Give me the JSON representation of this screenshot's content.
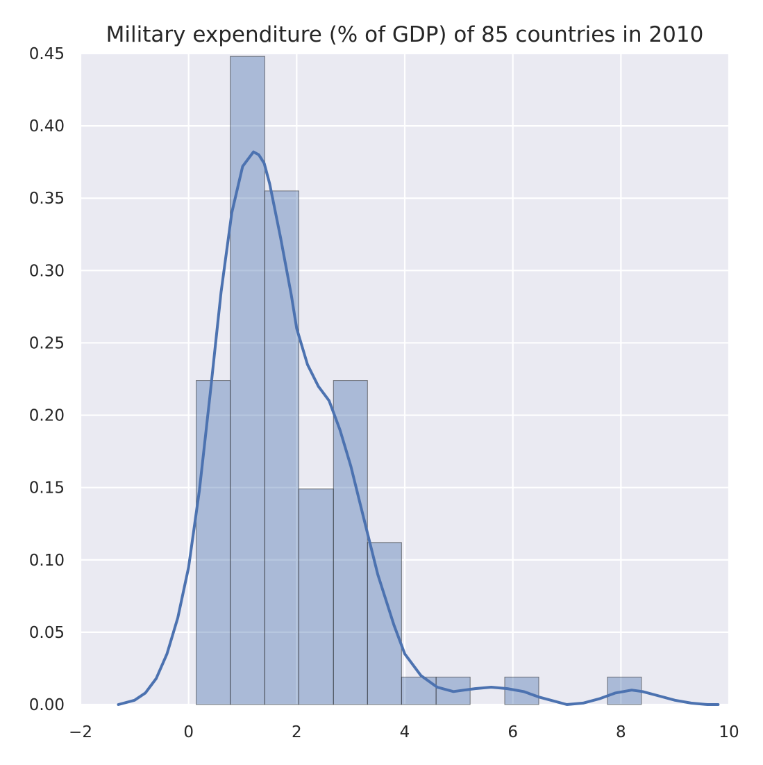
{
  "chart_data": {
    "type": "bar",
    "title": "Military expenditure (% of GDP) of 85 countries in 2010",
    "xlabel": "",
    "ylabel": "",
    "xlim": [
      -2,
      10
    ],
    "ylim": [
      0,
      0.45
    ],
    "grid": true,
    "x_ticks": [
      "−2",
      "0",
      "2",
      "4",
      "6",
      "8",
      "10"
    ],
    "y_ticks": [
      "0.00",
      "0.05",
      "0.10",
      "0.15",
      "0.20",
      "0.25",
      "0.30",
      "0.35",
      "0.40",
      "0.45"
    ],
    "bins": [
      {
        "x0": 0.14,
        "x1": 0.77,
        "density": 0.224
      },
      {
        "x0": 0.77,
        "x1": 1.41,
        "density": 0.448
      },
      {
        "x0": 1.41,
        "x1": 2.04,
        "density": 0.355
      },
      {
        "x0": 2.04,
        "x1": 2.68,
        "density": 0.149
      },
      {
        "x0": 2.68,
        "x1": 3.31,
        "density": 0.224
      },
      {
        "x0": 3.31,
        "x1": 3.94,
        "density": 0.112
      },
      {
        "x0": 3.94,
        "x1": 4.58,
        "density": 0.019
      },
      {
        "x0": 4.58,
        "x1": 5.21,
        "density": 0.019
      },
      {
        "x0": 5.21,
        "x1": 5.85,
        "density": 0.0
      },
      {
        "x0": 5.85,
        "x1": 6.48,
        "density": 0.019
      },
      {
        "x0": 6.48,
        "x1": 7.12,
        "density": 0.0
      },
      {
        "x0": 7.12,
        "x1": 7.75,
        "density": 0.0
      },
      {
        "x0": 7.75,
        "x1": 8.38,
        "density": 0.019
      }
    ],
    "kde": {
      "name": "",
      "x": [
        -1.3,
        -1.0,
        -0.8,
        -0.6,
        -0.4,
        -0.2,
        0.0,
        0.2,
        0.4,
        0.6,
        0.8,
        1.0,
        1.2,
        1.3,
        1.4,
        1.5,
        1.7,
        1.9,
        2.0,
        2.2,
        2.4,
        2.6,
        2.8,
        3.0,
        3.2,
        3.5,
        3.8,
        4.0,
        4.3,
        4.6,
        4.9,
        5.1,
        5.3,
        5.6,
        5.9,
        6.2,
        6.5,
        6.8,
        7.0,
        7.3,
        7.6,
        7.9,
        8.2,
        8.4,
        8.7,
        9.0,
        9.3,
        9.6,
        9.8
      ],
      "y": [
        0.0,
        0.003,
        0.008,
        0.018,
        0.035,
        0.06,
        0.095,
        0.148,
        0.215,
        0.285,
        0.34,
        0.372,
        0.382,
        0.38,
        0.374,
        0.36,
        0.323,
        0.283,
        0.26,
        0.235,
        0.22,
        0.21,
        0.19,
        0.165,
        0.135,
        0.09,
        0.055,
        0.035,
        0.02,
        0.012,
        0.009,
        0.01,
        0.011,
        0.012,
        0.011,
        0.009,
        0.005,
        0.002,
        0.0,
        0.001,
        0.004,
        0.008,
        0.01,
        0.009,
        0.006,
        0.003,
        0.001,
        0.0,
        0.0
      ],
      "color": "#4c72b0"
    },
    "colors": {
      "background": "#eaeaf2",
      "grid": "#ffffff",
      "bar_fill": "#4c72b0",
      "bar_edge": "#2a2a2a",
      "text": "#262626"
    }
  }
}
